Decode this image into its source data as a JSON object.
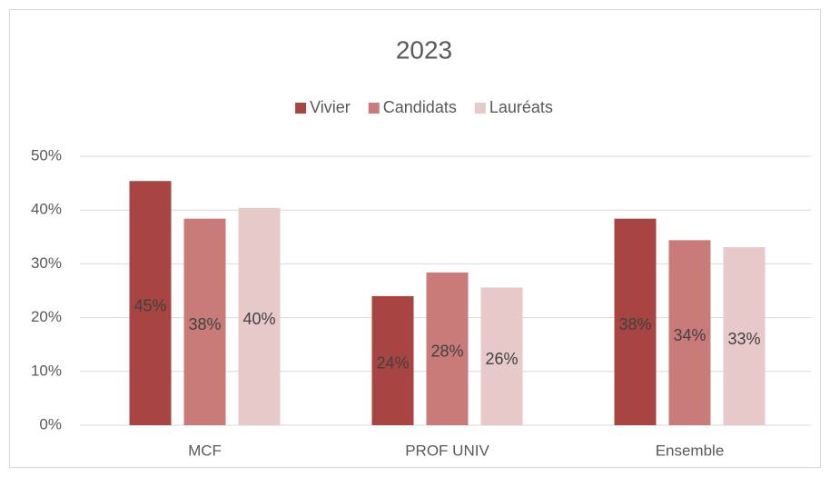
{
  "chart_data": {
    "type": "bar",
    "title": "2023",
    "categories": [
      "MCF",
      "PROF UNIV",
      "Ensemble"
    ],
    "series": [
      {
        "name": "Vivier",
        "color": "#a84442",
        "values": [
          45.4,
          24.0,
          38.4
        ],
        "value_labels": [
          "45%",
          "24%",
          "38%"
        ]
      },
      {
        "name": "Candidats",
        "color": "#c97b7a",
        "values": [
          38.4,
          28.4,
          34.4
        ],
        "value_labels": [
          "38%",
          "28%",
          "34%"
        ]
      },
      {
        "name": "Lauréats",
        "color": "#e8c9c9",
        "values": [
          40.4,
          25.6,
          33.1
        ],
        "value_labels": [
          "40%",
          "26%",
          "33%"
        ]
      }
    ],
    "ylim": [
      0,
      50
    ],
    "yticks": [
      {
        "value": 0,
        "label": "0%"
      },
      {
        "value": 10,
        "label": "10%"
      },
      {
        "value": 20,
        "label": "20%"
      },
      {
        "value": 30,
        "label": "30%"
      },
      {
        "value": 40,
        "label": "40%"
      },
      {
        "value": 50,
        "label": "50%"
      }
    ],
    "grid": true,
    "legend": "top"
  }
}
